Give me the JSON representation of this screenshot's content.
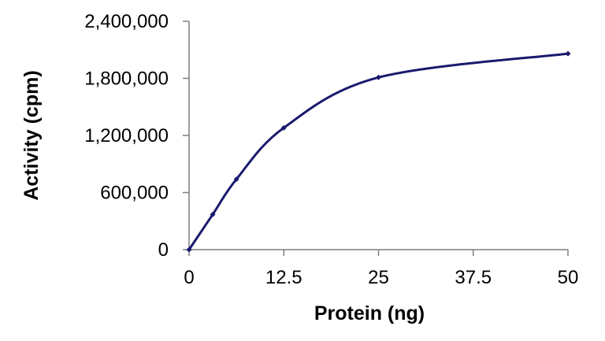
{
  "chart_data": {
    "type": "line",
    "title": "",
    "xlabel": "Protein (ng)",
    "ylabel": "Activity (cpm)",
    "xlim": [
      0,
      50
    ],
    "ylim": [
      0,
      2400000
    ],
    "x_ticks": [
      0,
      12.5,
      25,
      37.5,
      50
    ],
    "x_tick_labels": [
      "0",
      "12.5",
      "25",
      "37.5",
      "50"
    ],
    "y_ticks": [
      0,
      600000,
      1200000,
      1800000,
      2400000
    ],
    "y_tick_labels": [
      "0",
      "600,000",
      "1,200,000",
      "1,800,000",
      "2,400,000"
    ],
    "grid": false,
    "legend": "none",
    "smooth": true,
    "series": [
      {
        "color": "#1a1a6e",
        "x": [
          0,
          3.125,
          6.25,
          12.5,
          25,
          50
        ],
        "y": [
          0,
          370000,
          740000,
          1280000,
          1810000,
          2060000
        ]
      }
    ]
  }
}
